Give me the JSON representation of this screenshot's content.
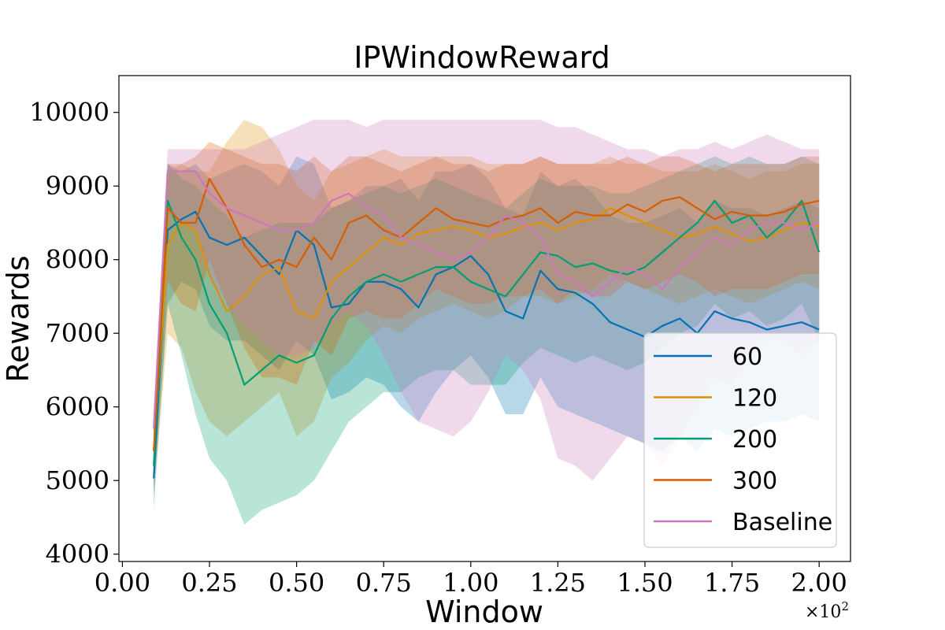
{
  "chart_data": {
    "type": "line",
    "title": "IPWindowReward",
    "xlabel": "Window",
    "ylabel": "Rewards",
    "x_multiplier": "×10",
    "x_multiplier_exp": "2",
    "xlim": [
      -0.01,
      2.09
    ],
    "ylim": [
      3900,
      10500
    ],
    "xticks": [
      0.0,
      0.25,
      0.5,
      0.75,
      1.0,
      1.25,
      1.5,
      1.75,
      2.0
    ],
    "xtick_labels": [
      "0.00",
      "0.25",
      "0.50",
      "0.75",
      "1.00",
      "1.25",
      "1.50",
      "1.75",
      "2.00"
    ],
    "yticks": [
      4000,
      5000,
      6000,
      7000,
      8000,
      9000,
      10000
    ],
    "ytick_labels": [
      "4000",
      "5000",
      "6000",
      "7000",
      "8000",
      "9000",
      "10000"
    ],
    "grid": false,
    "legend_position": "lower-right",
    "x": [
      0.09,
      0.13,
      0.17,
      0.21,
      0.25,
      0.3,
      0.35,
      0.4,
      0.45,
      0.5,
      0.55,
      0.6,
      0.65,
      0.7,
      0.75,
      0.8,
      0.85,
      0.9,
      0.95,
      1.0,
      1.05,
      1.1,
      1.15,
      1.2,
      1.25,
      1.3,
      1.35,
      1.4,
      1.45,
      1.5,
      1.55,
      1.6,
      1.65,
      1.7,
      1.75,
      1.8,
      1.85,
      1.9,
      1.95,
      2.0
    ],
    "series": [
      {
        "name": "60",
        "color": "#0173b2",
        "values": [
          5030,
          8400,
          8550,
          8650,
          8300,
          8200,
          8300,
          8050,
          7800,
          8400,
          8200,
          7350,
          7400,
          7700,
          7700,
          7600,
          7350,
          7800,
          7900,
          8050,
          7800,
          7300,
          7200,
          7850,
          7600,
          7550,
          7400,
          7150,
          7050,
          6950,
          7100,
          7200,
          7000,
          7300,
          7200,
          7150,
          7050,
          7100,
          7150,
          7050
        ],
        "lower": [
          4600,
          7400,
          7700,
          7600,
          7100,
          6900,
          6900,
          6700,
          6500,
          6900,
          6700,
          6100,
          6200,
          6400,
          6300,
          6000,
          5800,
          6200,
          6500,
          6700,
          6400,
          5900,
          5900,
          6400,
          6000,
          5900,
          5800,
          5700,
          5600,
          5500,
          5400,
          5600,
          5400,
          5700,
          5600,
          5700,
          5800,
          5800,
          5900,
          5800
        ],
        "upper": [
          5600,
          9300,
          9200,
          9300,
          9100,
          9200,
          9300,
          9200,
          9000,
          9400,
          9300,
          8700,
          8800,
          9000,
          9000,
          9100,
          8800,
          9200,
          9200,
          9300,
          9100,
          8700,
          8600,
          9200,
          9000,
          9100,
          8900,
          8600,
          8500,
          8500,
          8600,
          8700,
          8500,
          8800,
          8700,
          8700,
          8600,
          8700,
          8800,
          8700
        ]
      },
      {
        "name": "120",
        "color": "#de8f05",
        "values": [
          5400,
          8200,
          8500,
          8400,
          7800,
          7300,
          7500,
          7800,
          7900,
          7300,
          7200,
          7700,
          7900,
          8100,
          8300,
          8200,
          8350,
          8400,
          8450,
          8400,
          8300,
          8350,
          8450,
          8500,
          8400,
          8500,
          8550,
          8700,
          8600,
          8500,
          8400,
          8300,
          8350,
          8450,
          8350,
          8250,
          8300,
          8400,
          8500,
          8450
        ],
        "lower": [
          4800,
          7000,
          6800,
          6200,
          5800,
          5600,
          5800,
          6000,
          6200,
          5600,
          5800,
          6400,
          6600,
          6900,
          7100,
          7000,
          7200,
          7300,
          7400,
          7300,
          7200,
          7300,
          7500,
          7500,
          7400,
          7500,
          7600,
          7800,
          7700,
          7600,
          7500,
          7400,
          7500,
          7600,
          7500,
          7400,
          7500,
          7600,
          7700,
          7600
        ],
        "upper": [
          5900,
          9200,
          9300,
          9200,
          9200,
          9600,
          9900,
          9800,
          9500,
          9000,
          8800,
          9200,
          9300,
          9400,
          9500,
          9400,
          9400,
          9400,
          9400,
          9400,
          9300,
          9300,
          9300,
          9400,
          9300,
          9300,
          9300,
          9400,
          9300,
          9300,
          9200,
          9200,
          9200,
          9300,
          9200,
          9100,
          9200,
          9200,
          9300,
          9300
        ]
      },
      {
        "name": "200",
        "color": "#029e73",
        "values": [
          5200,
          8800,
          8300,
          8000,
          7400,
          7000,
          6300,
          6500,
          6700,
          6600,
          6700,
          7200,
          7500,
          7700,
          7800,
          7700,
          7800,
          7900,
          7900,
          7700,
          7600,
          7500,
          7800,
          8100,
          8050,
          7900,
          7950,
          7850,
          7800,
          7900,
          8100,
          8300,
          8500,
          8800,
          8500,
          8600,
          8300,
          8500,
          8800,
          8100
        ],
        "lower": [
          4800,
          7400,
          6700,
          5900,
          5300,
          5000,
          4400,
          4600,
          4700,
          4800,
          5000,
          5400,
          5800,
          6000,
          6200,
          6200,
          6400,
          6500,
          6500,
          6300,
          6300,
          6300,
          6600,
          6800,
          6700,
          6600,
          6700,
          6600,
          6500,
          6600,
          6800,
          7000,
          7100,
          7400,
          7200,
          7300,
          7100,
          7200,
          7400,
          6900
        ],
        "upper": [
          5700,
          9300,
          9100,
          9000,
          8800,
          8600,
          8300,
          8400,
          8500,
          8500,
          8500,
          8700,
          8800,
          8900,
          9000,
          8900,
          9000,
          9100,
          9000,
          8900,
          8800,
          8700,
          8900,
          9100,
          9000,
          9000,
          9000,
          8900,
          8900,
          9000,
          9100,
          9200,
          9300,
          9400,
          9300,
          9400,
          9300,
          9300,
          9400,
          9300
        ]
      },
      {
        "name": "300",
        "color": "#d55e00",
        "values": [
          5400,
          8700,
          8500,
          8500,
          9100,
          8700,
          8200,
          7900,
          8000,
          7900,
          8300,
          8000,
          8500,
          8600,
          8400,
          8300,
          8500,
          8700,
          8550,
          8500,
          8450,
          8550,
          8600,
          8700,
          8500,
          8650,
          8600,
          8600,
          8750,
          8650,
          8800,
          8850,
          8700,
          8550,
          8650,
          8600,
          8600,
          8650,
          8750,
          8800
        ],
        "lower": [
          4900,
          7700,
          7400,
          7300,
          8000,
          7400,
          6800,
          6400,
          6400,
          6300,
          6900,
          6700,
          7200,
          7300,
          7200,
          7200,
          7400,
          7600,
          7500,
          7400,
          7400,
          7500,
          7500,
          7600,
          7400,
          7600,
          7500,
          7500,
          7700,
          7600,
          7700,
          7800,
          7700,
          7500,
          7600,
          7600,
          7600,
          7700,
          7800,
          7800
        ],
        "upper": [
          5900,
          9300,
          9300,
          9400,
          9600,
          9500,
          9400,
          9300,
          9300,
          9200,
          9400,
          9200,
          9400,
          9400,
          9300,
          9200,
          9300,
          9400,
          9300,
          9300,
          9200,
          9300,
          9300,
          9400,
          9300,
          9300,
          9300,
          9300,
          9400,
          9300,
          9400,
          9400,
          9300,
          9200,
          9300,
          9300,
          9300,
          9300,
          9400,
          9400
        ]
      },
      {
        "name": "Baseline",
        "color": "#cc78bc",
        "values": [
          5700,
          9200,
          9200,
          9200,
          8900,
          8700,
          8600,
          8500,
          8400,
          8400,
          8500,
          8800,
          8900,
          8700,
          8600,
          8300,
          8200,
          8100,
          8000,
          8100,
          8300,
          8600,
          8500,
          8300,
          7800,
          7700,
          7500,
          7700,
          7900,
          7800,
          7600,
          7900,
          8100,
          8300,
          8200,
          8400,
          8500,
          8500,
          8400,
          8500
        ],
        "lower": [
          5400,
          8600,
          8500,
          8400,
          7800,
          7400,
          7100,
          6900,
          6700,
          6700,
          6800,
          7100,
          7300,
          7100,
          6700,
          6200,
          5800,
          5700,
          5600,
          5800,
          6200,
          6700,
          6500,
          6100,
          5300,
          5200,
          5000,
          5300,
          5600,
          5500,
          5200,
          5600,
          6000,
          6400,
          6300,
          6700,
          6900,
          6900,
          6700,
          6900
        ],
        "upper": [
          6000,
          9500,
          9500,
          9500,
          9500,
          9500,
          9500,
          9600,
          9700,
          9800,
          9900,
          9900,
          9900,
          9800,
          9900,
          9900,
          9900,
          9900,
          9900,
          9900,
          9900,
          9900,
          9900,
          9900,
          9800,
          9800,
          9700,
          9600,
          9500,
          9500,
          9400,
          9500,
          9500,
          9600,
          9500,
          9600,
          9700,
          9600,
          9500,
          9500
        ]
      }
    ]
  }
}
